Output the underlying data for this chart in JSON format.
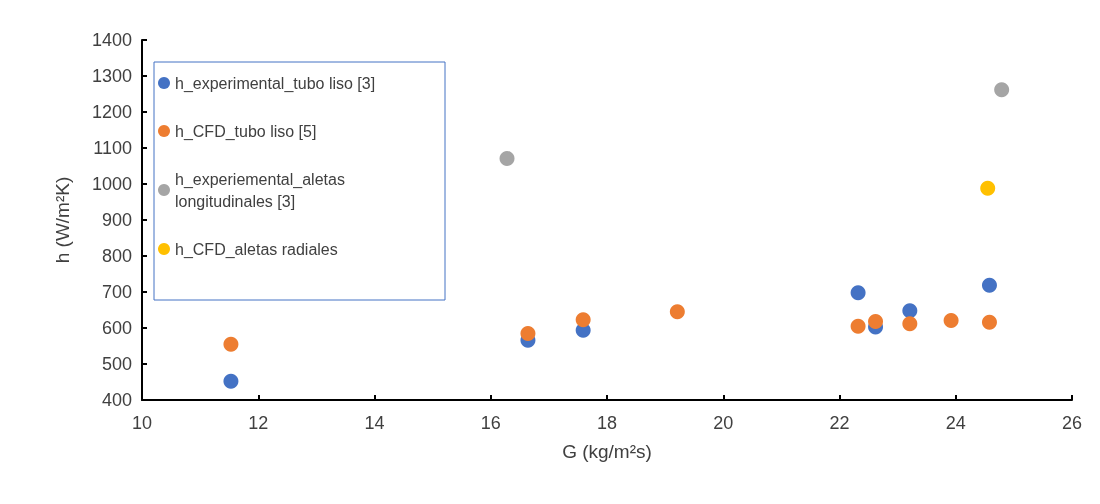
{
  "chart_data": {
    "type": "scatter",
    "xlabel": "G (kg/m²s)",
    "ylabel": "h (W/m²K)",
    "xlim": [
      10,
      26
    ],
    "xticks": [
      10,
      12,
      14,
      16,
      18,
      20,
      22,
      24,
      26
    ],
    "ylim": [
      400,
      1400
    ],
    "yticks": [
      400,
      500,
      600,
      700,
      800,
      900,
      1000,
      1100,
      1200,
      1300,
      1400
    ],
    "grid": false,
    "legend": "top left",
    "marker": "circle",
    "series": [
      {
        "name": "h_experimental_tubo liso [3]",
        "color": "#4472c4",
        "x": [
          11.53,
          16.64,
          17.59,
          22.32,
          22.62,
          23.21,
          24.58
        ],
        "values": [
          452,
          566,
          594,
          698,
          603,
          648,
          719
        ]
      },
      {
        "name": "h_CFD_tubo liso [5]",
        "color": "#ed7d31",
        "x": [
          11.53,
          16.64,
          17.59,
          19.21,
          22.32,
          22.62,
          23.21,
          23.92,
          24.58
        ],
        "values": [
          555,
          585,
          623,
          645,
          605,
          618,
          612,
          621,
          616
        ]
      },
      {
        "name": "h_experiemental_aletas longitudinales [3]",
        "color": "#a5a5a5",
        "x": [
          16.28,
          24.79
        ],
        "values": [
          1071,
          1262
        ]
      },
      {
        "name": "h_CFD_aletas radiales",
        "color": "#ffc000",
        "x": [
          24.55
        ],
        "values": [
          988
        ]
      }
    ]
  }
}
